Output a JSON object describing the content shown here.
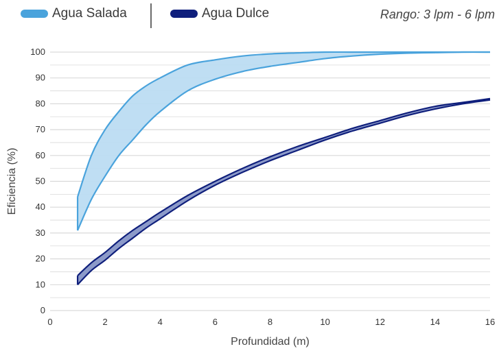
{
  "legend": {
    "salt_label": "Agua Salada",
    "fresh_label": "Agua Dulce",
    "range_note": "Rango: 3 lpm - 6 lpm"
  },
  "colors": {
    "salt_line": "#4aa3dc",
    "salt_fill": "#bcdcf2",
    "fresh_line": "#0f1f7c",
    "fresh_fill": "#8c9ac9",
    "grid": "#d9d9d9"
  },
  "chart_data": {
    "type": "area",
    "xlabel": "Profundidad (m)",
    "ylabel": "Eficiencia (%)",
    "xlim": [
      0,
      16
    ],
    "ylim": [
      0,
      100
    ],
    "xticks": [
      0,
      2,
      4,
      6,
      8,
      10,
      12,
      14,
      16
    ],
    "yticks": [
      0,
      10,
      20,
      30,
      40,
      50,
      60,
      70,
      80,
      90,
      100
    ],
    "grid": true,
    "x": [
      1,
      1.5,
      2,
      2.5,
      3,
      3.5,
      4,
      5,
      6,
      7,
      8,
      9,
      10,
      11,
      12,
      13,
      14,
      15,
      16
    ],
    "series": [
      {
        "name": "Agua Salada",
        "upper": [
          44,
          60,
          70,
          77,
          83,
          87,
          90,
          95,
          97,
          98.5,
          99.3,
          99.7,
          100,
          100,
          100,
          100,
          100,
          100,
          100
        ],
        "lower": [
          31,
          43,
          52,
          60,
          66,
          72,
          77,
          85,
          89.5,
          92.5,
          94.5,
          96,
          97.5,
          98.5,
          99.2,
          99.6,
          99.8,
          100,
          100
        ]
      },
      {
        "name": "Agua Dulce",
        "upper": [
          13.5,
          18.5,
          22.5,
          27,
          31,
          34.5,
          38,
          44.5,
          50,
          55,
          59.5,
          63.5,
          67,
          70.5,
          73.5,
          76.5,
          79,
          80.5,
          82
        ],
        "lower": [
          10,
          15.5,
          19.5,
          24,
          28,
          32,
          35.5,
          42.5,
          48.5,
          53.5,
          58,
          62,
          66,
          69.5,
          72.5,
          75.5,
          78,
          80,
          81.5
        ]
      }
    ]
  }
}
